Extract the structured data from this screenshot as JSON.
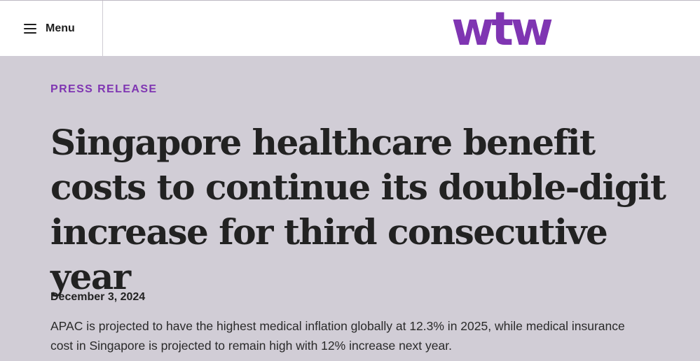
{
  "header": {
    "menu_label": "Menu",
    "logo_text": "wtw",
    "brand_color": "#7f35b2"
  },
  "article": {
    "category": "PRESS RELEASE",
    "title": "Singapore healthcare benefit costs to continue its double-digit increase for third consecutive year",
    "date": "December 3, 2024",
    "summary": "APAC is projected to have the highest medical inflation globally at 12.3% in 2025, while medical insurance cost in Singapore is projected to remain high with 12% increase next year."
  },
  "colors": {
    "page_background": "#d1cdd6",
    "header_background": "#ffffff",
    "text": "#222222"
  }
}
